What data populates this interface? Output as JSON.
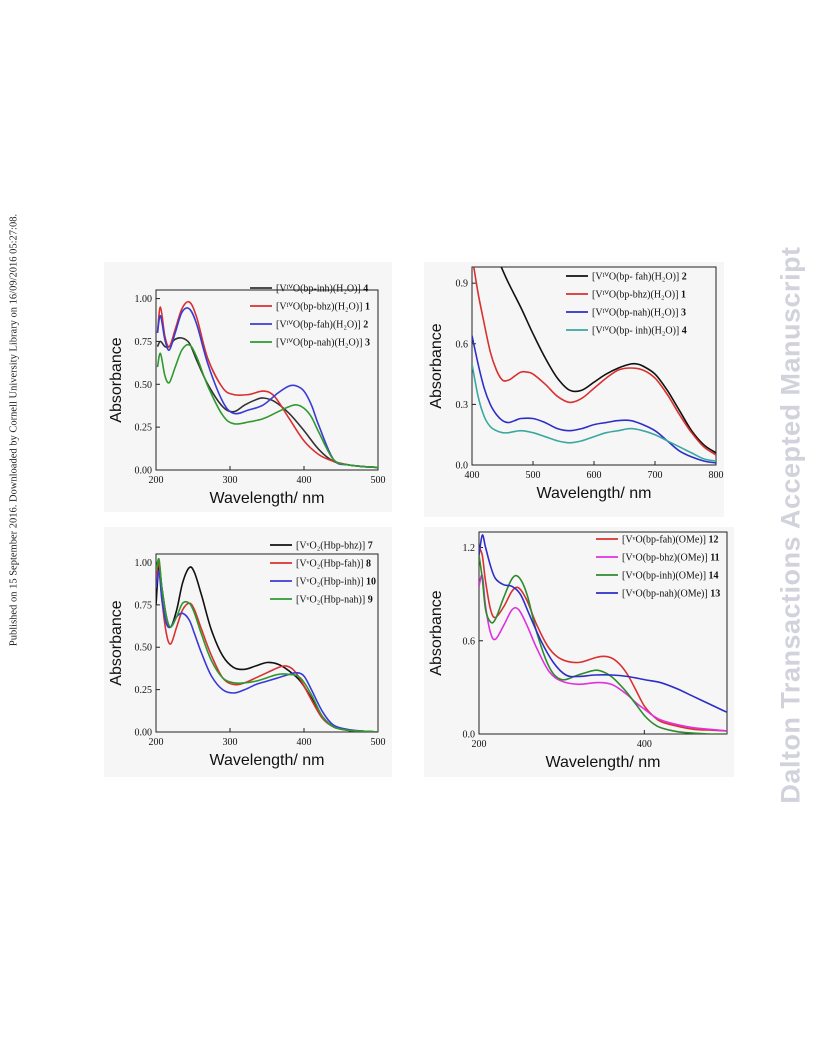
{
  "margin_note": "Published on 15 September 2016. Downloaded by Cornell University Library on 16/09/2016 05:27:08.",
  "watermark": "Dalton Transactions Accepted Manuscript",
  "chart_data": [
    {
      "type": "line",
      "xlabel": "Wavelength/ nm",
      "ylabel": "Absorbance",
      "xlim": [
        200,
        500
      ],
      "ylim": [
        0,
        1.05
      ],
      "xticks": [
        200,
        300,
        400,
        500
      ],
      "xtick_labels": [
        "200",
        "300",
        "400",
        "500"
      ],
      "yticks": [
        0,
        0.25,
        0.5,
        0.75,
        1.0
      ],
      "ytick_labels": [
        "0.00",
        "0.25",
        "0.50",
        "0.75",
        "1.00"
      ],
      "legend_position": "top-right",
      "series": [
        {
          "name": "[VᴵⱽO(bp-inh)(H₂O)]",
          "num": "4",
          "color": "#333333",
          "x": [
            202,
            206,
            212,
            218,
            225,
            235,
            245,
            255,
            270,
            290,
            305,
            320,
            335,
            345,
            360,
            380,
            400,
            420,
            440,
            460,
            480,
            500
          ],
          "y": [
            0.72,
            0.75,
            0.72,
            0.72,
            0.76,
            0.77,
            0.74,
            0.64,
            0.5,
            0.37,
            0.34,
            0.38,
            0.41,
            0.42,
            0.4,
            0.33,
            0.23,
            0.12,
            0.05,
            0.03,
            0.02,
            0.015
          ]
        },
        {
          "name": "[VᴵⱽO(bp-bhz)(H₂O)]",
          "num": "1",
          "color": "#d93030",
          "x": [
            202,
            206,
            212,
            218,
            226,
            235,
            245,
            255,
            270,
            290,
            305,
            325,
            345,
            360,
            380,
            400,
            420,
            440,
            460,
            480,
            500
          ],
          "y": [
            0.8,
            0.95,
            0.78,
            0.72,
            0.82,
            0.94,
            0.98,
            0.89,
            0.65,
            0.48,
            0.44,
            0.44,
            0.46,
            0.43,
            0.3,
            0.17,
            0.09,
            0.05,
            0.03,
            0.02,
            0.015
          ]
        },
        {
          "name": "[VᴵⱽO(bp-fah)(H₂O)]",
          "num": "2",
          "color": "#3a3ad6",
          "x": [
            202,
            206,
            212,
            218,
            226,
            235,
            245,
            255,
            270,
            290,
            305,
            325,
            345,
            365,
            380,
            390,
            400,
            410,
            420,
            440,
            460,
            480,
            500
          ],
          "y": [
            0.8,
            0.9,
            0.76,
            0.7,
            0.8,
            0.92,
            0.94,
            0.85,
            0.62,
            0.4,
            0.33,
            0.35,
            0.38,
            0.45,
            0.49,
            0.49,
            0.46,
            0.38,
            0.26,
            0.06,
            0.03,
            0.02,
            0.015
          ]
        },
        {
          "name": "[VᴵⱽO(bp-nah)(H₂O)]",
          "num": "3",
          "color": "#2e9a2e",
          "x": [
            202,
            206,
            212,
            218,
            226,
            235,
            245,
            255,
            270,
            290,
            305,
            325,
            345,
            365,
            380,
            390,
            400,
            410,
            420,
            440,
            460,
            480,
            500
          ],
          "y": [
            0.6,
            0.68,
            0.55,
            0.51,
            0.6,
            0.7,
            0.73,
            0.66,
            0.49,
            0.32,
            0.27,
            0.28,
            0.3,
            0.34,
            0.37,
            0.38,
            0.36,
            0.31,
            0.22,
            0.06,
            0.03,
            0.02,
            0.015
          ]
        }
      ]
    },
    {
      "type": "line",
      "xlabel": "Wavelength/ nm",
      "ylabel": "Absorbance",
      "xlim": [
        400,
        800
      ],
      "ylim": [
        0,
        0.98
      ],
      "xticks": [
        400,
        500,
        600,
        700,
        800
      ],
      "xtick_labels": [
        "400",
        "500",
        "600",
        "700",
        "800"
      ],
      "yticks": [
        0,
        0.3,
        0.6,
        0.9
      ],
      "ytick_labels": [
        "0.0",
        "0.3",
        "0.6",
        "0.9"
      ],
      "legend_position": "top-right",
      "series": [
        {
          "name": "[VᴵⱽO(bp- fah)(H₂O)]",
          "num": "2",
          "color": "#111111",
          "x": [
            445,
            460,
            480,
            500,
            520,
            540,
            560,
            580,
            600,
            620,
            640,
            660,
            670,
            680,
            700,
            720,
            740,
            760,
            780,
            800
          ],
          "y": [
            1.0,
            0.9,
            0.78,
            0.65,
            0.53,
            0.43,
            0.37,
            0.37,
            0.41,
            0.45,
            0.48,
            0.5,
            0.5,
            0.49,
            0.45,
            0.37,
            0.27,
            0.17,
            0.1,
            0.06
          ]
        },
        {
          "name": "[VᴵⱽO(bp-bhz)(H₂O)]",
          "num": "1",
          "color": "#d93030",
          "x": [
            403,
            410,
            420,
            430,
            440,
            450,
            460,
            470,
            480,
            490,
            500,
            520,
            540,
            560,
            580,
            600,
            620,
            640,
            660,
            680,
            700,
            720,
            740,
            760,
            780,
            800
          ],
          "y": [
            0.98,
            0.85,
            0.7,
            0.56,
            0.47,
            0.42,
            0.42,
            0.44,
            0.46,
            0.46,
            0.45,
            0.4,
            0.34,
            0.31,
            0.33,
            0.38,
            0.43,
            0.47,
            0.48,
            0.47,
            0.43,
            0.35,
            0.25,
            0.16,
            0.09,
            0.05
          ]
        },
        {
          "name": "[VᴵⱽO(bp-nah)(H₂O)]",
          "num": "3",
          "color": "#2d2dc8",
          "x": [
            400,
            410,
            420,
            430,
            440,
            450,
            460,
            470,
            480,
            500,
            520,
            540,
            560,
            580,
            600,
            620,
            640,
            660,
            680,
            700,
            720,
            740,
            760,
            780,
            800
          ],
          "y": [
            0.64,
            0.5,
            0.38,
            0.3,
            0.25,
            0.22,
            0.21,
            0.22,
            0.23,
            0.23,
            0.21,
            0.18,
            0.17,
            0.18,
            0.2,
            0.21,
            0.22,
            0.22,
            0.2,
            0.17,
            0.12,
            0.07,
            0.04,
            0.02,
            0.01
          ]
        },
        {
          "name": "[VᴵⱽO(bp- inh)(H₂O)]",
          "num": "4",
          "color": "#3aa8a0",
          "x": [
            400,
            410,
            420,
            430,
            440,
            450,
            460,
            480,
            500,
            520,
            540,
            560,
            580,
            600,
            620,
            640,
            660,
            680,
            700,
            720,
            740,
            760,
            780,
            800
          ],
          "y": [
            0.5,
            0.34,
            0.24,
            0.19,
            0.17,
            0.16,
            0.16,
            0.17,
            0.16,
            0.14,
            0.12,
            0.11,
            0.12,
            0.14,
            0.16,
            0.17,
            0.18,
            0.17,
            0.15,
            0.12,
            0.09,
            0.06,
            0.03,
            0.02
          ]
        }
      ]
    },
    {
      "type": "line",
      "xlabel": "Wavelength/ nm",
      "ylabel": "Absorbance",
      "xlim": [
        200,
        500
      ],
      "ylim": [
        0,
        1.05
      ],
      "xticks": [
        200,
        300,
        400,
        500
      ],
      "xtick_labels": [
        "200",
        "300",
        "400",
        "500"
      ],
      "yticks": [
        0,
        0.25,
        0.5,
        0.75,
        1.0
      ],
      "ytick_labels": [
        "0.00",
        "0.25",
        "0.50",
        "0.75",
        "1.00"
      ],
      "legend_position": "top-right",
      "series": [
        {
          "name": "[VᵛO₂(Hbp-bhz)]",
          "num": "7",
          "color": "#111111",
          "x": [
            200,
            204,
            208,
            214,
            220,
            228,
            236,
            245,
            252,
            262,
            275,
            290,
            305,
            320,
            335,
            350,
            365,
            380,
            395,
            410,
            425,
            440,
            460,
            480,
            500
          ],
          "y": [
            0.75,
            0.98,
            0.85,
            0.68,
            0.62,
            0.72,
            0.88,
            0.97,
            0.94,
            0.8,
            0.6,
            0.45,
            0.38,
            0.37,
            0.39,
            0.41,
            0.4,
            0.36,
            0.3,
            0.2,
            0.09,
            0.03,
            0.01,
            0.005,
            0.0
          ]
        },
        {
          "name": "[VᵛO₂(Hbp-fah)]",
          "num": "8",
          "color": "#d93030",
          "x": [
            200,
            204,
            208,
            214,
            220,
            228,
            236,
            245,
            252,
            262,
            275,
            290,
            305,
            320,
            335,
            350,
            365,
            375,
            385,
            395,
            410,
            425,
            440,
            460,
            480,
            500
          ],
          "y": [
            0.9,
            1.0,
            0.78,
            0.58,
            0.52,
            0.62,
            0.72,
            0.76,
            0.72,
            0.6,
            0.45,
            0.32,
            0.28,
            0.29,
            0.32,
            0.35,
            0.38,
            0.39,
            0.37,
            0.31,
            0.19,
            0.08,
            0.03,
            0.01,
            0.005,
            0.0
          ]
        },
        {
          "name": "[VᵛO₂(Hbp-inh)]",
          "num": "10",
          "color": "#3a3ad6",
          "x": [
            200,
            204,
            208,
            214,
            220,
            228,
            236,
            245,
            252,
            262,
            275,
            290,
            305,
            320,
            335,
            350,
            365,
            380,
            390,
            400,
            410,
            425,
            440,
            460,
            480,
            500
          ],
          "y": [
            0.85,
            0.95,
            0.78,
            0.64,
            0.62,
            0.68,
            0.7,
            0.66,
            0.58,
            0.46,
            0.33,
            0.25,
            0.23,
            0.25,
            0.28,
            0.3,
            0.32,
            0.34,
            0.35,
            0.33,
            0.25,
            0.12,
            0.04,
            0.015,
            0.005,
            0.0
          ]
        },
        {
          "name": "[VᵛO₂(Hbp-nah)]",
          "num": "9",
          "color": "#2e9a2e",
          "x": [
            200,
            204,
            208,
            214,
            220,
            228,
            236,
            245,
            252,
            262,
            275,
            290,
            305,
            320,
            335,
            350,
            365,
            380,
            395,
            410,
            425,
            440,
            460,
            480,
            500
          ],
          "y": [
            0.95,
            1.02,
            0.85,
            0.68,
            0.62,
            0.68,
            0.76,
            0.76,
            0.7,
            0.57,
            0.42,
            0.32,
            0.29,
            0.29,
            0.3,
            0.32,
            0.34,
            0.34,
            0.32,
            0.22,
            0.09,
            0.03,
            0.01,
            0.005,
            0.0
          ]
        }
      ]
    },
    {
      "type": "line",
      "xlabel": "Wavelength/ nm",
      "ylabel": "Absorbance",
      "xlim": [
        200,
        500
      ],
      "ylim": [
        0,
        1.3
      ],
      "xticks": [
        200,
        400
      ],
      "xtick_labels": [
        "200",
        "400"
      ],
      "yticks": [
        0,
        0.6,
        1.2
      ],
      "ytick_labels": [
        "0.0",
        "0.6",
        "1.2"
      ],
      "legend_position": "top-right",
      "series": [
        {
          "name": "[VᵛO(bp-fah)(OMe)]",
          "num": "12",
          "color": "#d93030",
          "x": [
            200,
            204,
            208,
            214,
            220,
            230,
            240,
            248,
            258,
            270,
            285,
            300,
            320,
            340,
            350,
            360,
            370,
            380,
            390,
            400,
            410,
            420,
            440,
            460,
            480,
            500
          ],
          "y": [
            1.2,
            1.15,
            0.98,
            0.8,
            0.75,
            0.82,
            0.92,
            0.94,
            0.86,
            0.7,
            0.55,
            0.48,
            0.46,
            0.49,
            0.5,
            0.49,
            0.45,
            0.38,
            0.28,
            0.18,
            0.12,
            0.08,
            0.05,
            0.03,
            0.025,
            0.02
          ]
        },
        {
          "name": "[VᵛO(bp-bhz)(OMe)]",
          "num": "11",
          "color": "#e030e0",
          "x": [
            200,
            204,
            208,
            214,
            220,
            230,
            240,
            248,
            258,
            270,
            285,
            300,
            320,
            340,
            350,
            360,
            370,
            380,
            390,
            400,
            410,
            420,
            440,
            460,
            480,
            500
          ],
          "y": [
            0.95,
            1.02,
            0.82,
            0.65,
            0.61,
            0.7,
            0.8,
            0.8,
            0.7,
            0.55,
            0.4,
            0.34,
            0.32,
            0.33,
            0.33,
            0.32,
            0.29,
            0.25,
            0.2,
            0.16,
            0.12,
            0.09,
            0.06,
            0.04,
            0.03,
            0.02
          ]
        },
        {
          "name": "[VᵛO(bp-inh)(OMe)]",
          "num": "14",
          "color": "#2e8a2e",
          "x": [
            200,
            204,
            208,
            214,
            220,
            230,
            240,
            248,
            258,
            270,
            285,
            300,
            320,
            340,
            350,
            360,
            370,
            380,
            390,
            400,
            410,
            420,
            440,
            460,
            480,
            500
          ],
          "y": [
            1.15,
            1.0,
            0.8,
            0.72,
            0.74,
            0.88,
            1.0,
            1.01,
            0.9,
            0.65,
            0.43,
            0.35,
            0.38,
            0.41,
            0.4,
            0.37,
            0.32,
            0.26,
            0.19,
            0.12,
            0.07,
            0.04,
            0.015,
            0.005,
            0.0,
            0.0
          ]
        },
        {
          "name": "[VᵛO(bp-nah)(OMe)]",
          "num": "13",
          "color": "#2d2dc8",
          "x": [
            200,
            204,
            208,
            214,
            220,
            230,
            240,
            250,
            260,
            275,
            290,
            305,
            320,
            340,
            360,
            380,
            400,
            420,
            440,
            460,
            480,
            500
          ],
          "y": [
            1.15,
            1.28,
            1.2,
            1.08,
            1.0,
            0.96,
            0.95,
            0.9,
            0.78,
            0.6,
            0.46,
            0.38,
            0.37,
            0.38,
            0.38,
            0.37,
            0.35,
            0.33,
            0.29,
            0.24,
            0.19,
            0.14
          ]
        }
      ]
    }
  ]
}
